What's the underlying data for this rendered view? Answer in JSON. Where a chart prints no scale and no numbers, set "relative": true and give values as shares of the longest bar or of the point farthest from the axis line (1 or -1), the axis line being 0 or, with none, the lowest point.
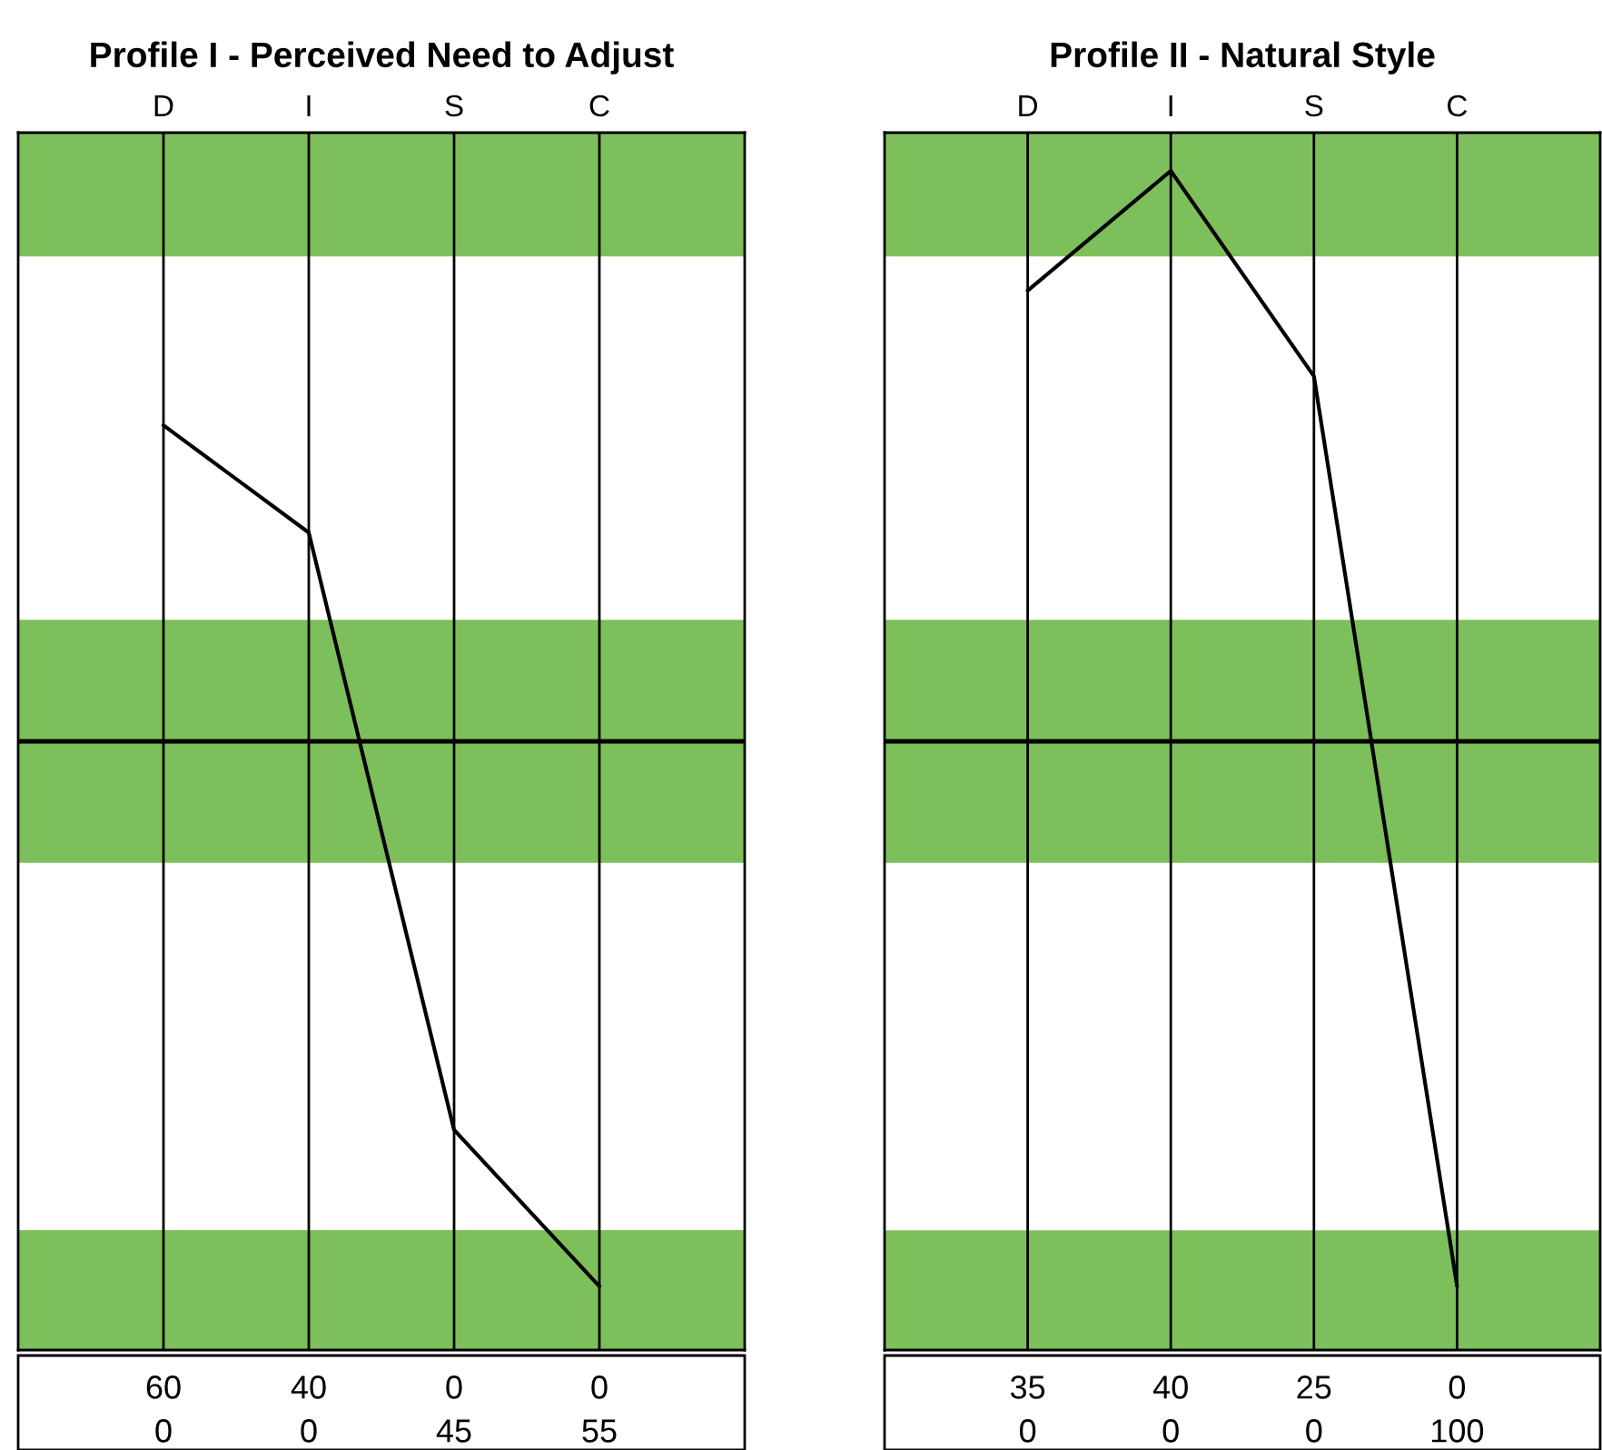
{
  "chart_data": [
    {
      "type": "line",
      "title": "Profile I - Perceived Need to Adjust",
      "categories": [
        "D",
        "I",
        "S",
        "C"
      ],
      "relative": true,
      "grid": "x",
      "marker": "none",
      "line_style": "solid",
      "series": [
        {
          "color": "#000000",
          "values": [
            0.58,
            0.383,
            -0.713,
            -1
          ]
        }
      ],
      "bands": [
        {
          "axis": "y",
          "from": 0.89,
          "to": 1.117,
          "color": "#7dbf5a"
        },
        {
          "axis": "y",
          "from": -0.223,
          "to": 0.223,
          "color": "#7dbf5a"
        },
        {
          "axis": "y",
          "from": -1.117,
          "to": -0.897,
          "color": "#7dbf5a"
        }
      ],
      "ref_lines": [
        {
          "axis": "y",
          "value": 0,
          "color": "#000000"
        }
      ],
      "annotations": [
        "60",
        "40",
        "0",
        "0",
        "0",
        "0",
        "45",
        "55"
      ]
    },
    {
      "type": "line",
      "title": "Profile II - Natural Style",
      "categories": [
        "D",
        "I",
        "S",
        "C"
      ],
      "relative": true,
      "grid": "x",
      "marker": "none",
      "line_style": "solid",
      "series": [
        {
          "color": "#000000",
          "values": [
            0.79,
            1,
            0.64,
            -0.955
          ]
        }
      ],
      "bands": [
        {
          "axis": "y",
          "from": 0.85,
          "to": 1.067,
          "color": "#7dbf5a"
        },
        {
          "axis": "y",
          "from": -0.213,
          "to": 0.213,
          "color": "#7dbf5a"
        },
        {
          "axis": "y",
          "from": -1.067,
          "to": -0.857,
          "color": "#7dbf5a"
        }
      ],
      "ref_lines": [
        {
          "axis": "y",
          "value": 0,
          "color": "#000000"
        }
      ],
      "annotations": [
        "35",
        "40",
        "25",
        "0",
        "0",
        "0",
        "0",
        "100"
      ]
    }
  ]
}
